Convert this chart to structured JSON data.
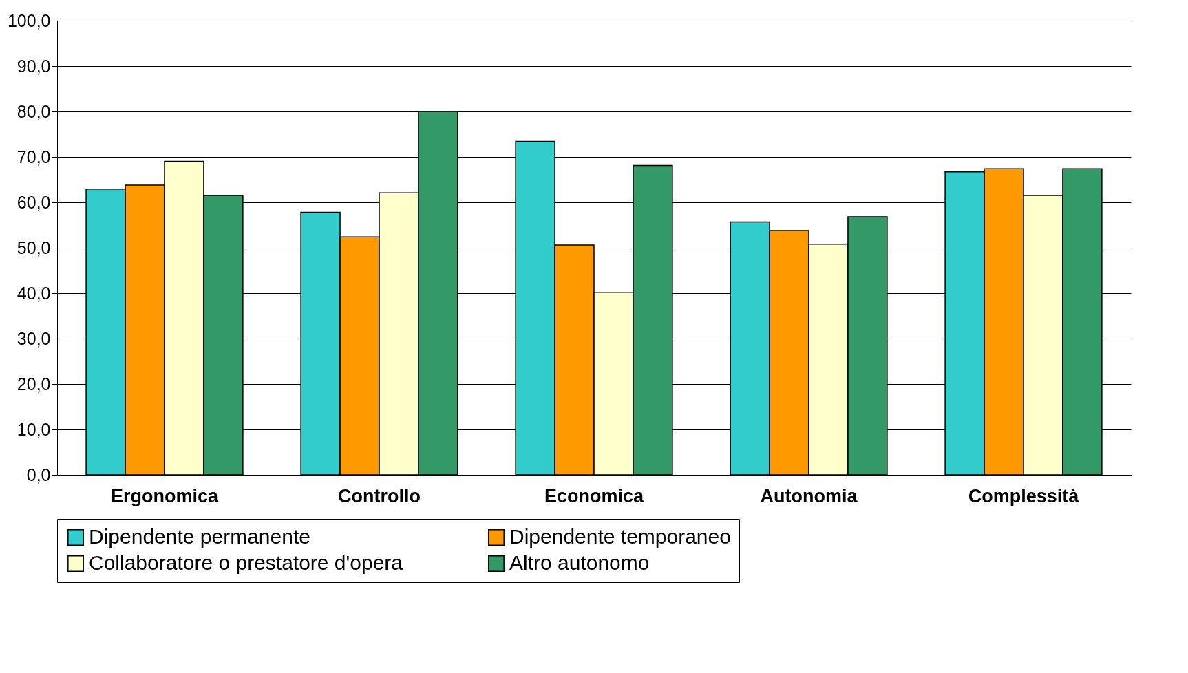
{
  "chart_data": {
    "type": "bar",
    "categories": [
      "Ergonomica",
      "Controllo",
      "Economica",
      "Autonomia",
      "Complessità"
    ],
    "series": [
      {
        "name": "Dipendente permanente",
        "color": "#33cccc",
        "values": [
          62.9,
          57.8,
          73.4,
          55.7,
          66.7
        ]
      },
      {
        "name": "Dipendente temporaneo",
        "color": "#ff9900",
        "values": [
          63.8,
          52.4,
          50.6,
          53.8,
          67.4
        ]
      },
      {
        "name": "Collaboratore o prestatore d'opera",
        "color": "#ffffcc",
        "values": [
          69.0,
          62.1,
          40.2,
          50.8,
          61.5
        ]
      },
      {
        "name": "Altro autonomo",
        "color": "#339966",
        "values": [
          61.5,
          80.0,
          68.1,
          56.8,
          67.4
        ]
      }
    ],
    "ylim": [
      0,
      100
    ],
    "yticks": [
      {
        "value": 0,
        "label": "0,0"
      },
      {
        "value": 10,
        "label": "10,0"
      },
      {
        "value": 20,
        "label": "20,0"
      },
      {
        "value": 30,
        "label": "30,0"
      },
      {
        "value": 40,
        "label": "40,0"
      },
      {
        "value": 50,
        "label": "50,0"
      },
      {
        "value": 60,
        "label": "60,0"
      },
      {
        "value": 70,
        "label": "70,0"
      },
      {
        "value": 80,
        "label": "80,0"
      },
      {
        "value": 90,
        "label": "90,0"
      },
      {
        "value": 100,
        "label": "100,0"
      }
    ],
    "grid": "y",
    "legend": "bottom"
  }
}
